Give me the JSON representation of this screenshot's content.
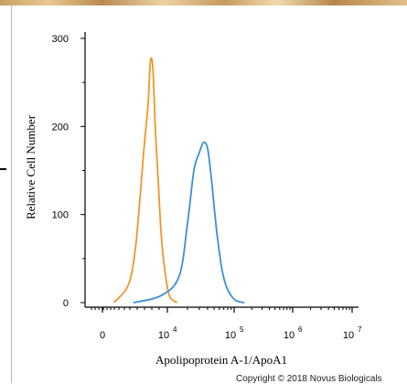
{
  "chart_data": {
    "type": "line",
    "xlabel": "Apolipoprotein A-1/ApoA1",
    "ylabel": "Relative Cell Number",
    "x_scale": "biexponential",
    "ylim": [
      0,
      310
    ],
    "y_ticks": [
      0,
      100,
      200,
      300
    ],
    "x_ticks": [
      {
        "value": 0,
        "label": "0"
      },
      {
        "value": 10000,
        "label": "10",
        "exp": "4"
      },
      {
        "value": 100000,
        "label": "10",
        "exp": "5"
      },
      {
        "value": 1000000,
        "label": "10",
        "exp": "6"
      },
      {
        "value": 10000000,
        "label": "10",
        "exp": "7"
      }
    ],
    "series": [
      {
        "color": "#f0962a",
        "x": [
          1500,
          2500,
          3200,
          3800,
          4300,
          4700,
          5100,
          5500,
          6000,
          6500,
          7200,
          8000,
          9000,
          10500,
          12000,
          14000
        ],
        "y": [
          0,
          20,
          60,
          120,
          170,
          200,
          230,
          275,
          265,
          200,
          140,
          80,
          40,
          10,
          3,
          0
        ]
      },
      {
        "color": "#3d8fd6",
        "x": [
          3000,
          8000,
          15000,
          20000,
          25000,
          30000,
          35000,
          40000,
          45000,
          50000,
          55000,
          65000,
          75000,
          90000,
          110000,
          150000
        ],
        "y": [
          0,
          8,
          30,
          90,
          150,
          170,
          182,
          175,
          145,
          110,
          80,
          40,
          20,
          8,
          2,
          0
        ]
      }
    ]
  },
  "footer": {
    "copyright": "Copyright © 2018 Novus Biologicals"
  }
}
